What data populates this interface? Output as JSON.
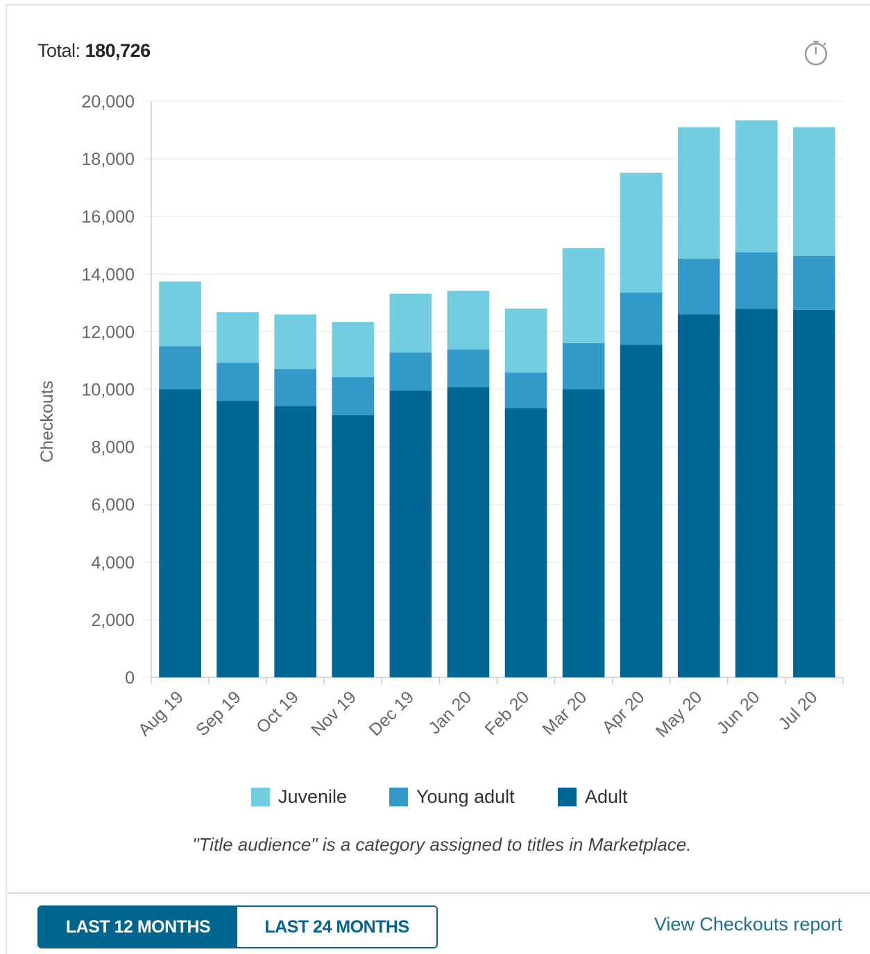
{
  "header": {
    "total_label": "Total:",
    "total_value": "180,726"
  },
  "icons": {
    "timer": "stopwatch-icon"
  },
  "colors": {
    "juvenile": "#72cde0",
    "young_adult": "#3399c9",
    "adult": "#006794",
    "accent": "#00668f",
    "grid": "#eeeeee",
    "axis": "#cccccc"
  },
  "chart_data": {
    "type": "bar",
    "stacked": true,
    "categories": [
      "Aug 19",
      "Sep 19",
      "Oct 19",
      "Nov 19",
      "Dec 19",
      "Jan 20",
      "Feb 20",
      "Mar 20",
      "Apr 20",
      "May 20",
      "Jun 20",
      "Jul 20"
    ],
    "series": [
      {
        "name": "Adult",
        "values": [
          10000,
          9600,
          9420,
          9100,
          9960,
          10080,
          9340,
          10000,
          11540,
          12600,
          12800,
          12760
        ]
      },
      {
        "name": "Young adult",
        "values": [
          1500,
          1320,
          1280,
          1320,
          1320,
          1300,
          1240,
          1600,
          1820,
          1940,
          1960,
          1880
        ]
      },
      {
        "name": "Juvenile",
        "values": [
          2240,
          1760,
          1900,
          1920,
          2040,
          2040,
          2220,
          3300,
          4160,
          4560,
          4580,
          4460
        ]
      }
    ],
    "ylabel": "Checkouts",
    "ylim": [
      0,
      20000
    ],
    "yticks": [
      "0",
      "2,000",
      "4,000",
      "6,000",
      "8,000",
      "10,000",
      "12,000",
      "14,000",
      "16,000",
      "18,000",
      "20,000"
    ],
    "grid": true,
    "legend": "bottom",
    "legend_entries": [
      "Juvenile",
      "Young adult",
      "Adult"
    ]
  },
  "legend": {
    "juvenile": "Juvenile",
    "young_adult": "Young adult",
    "adult": "Adult"
  },
  "note": "\"Title audience\" is a category assigned to titles in Marketplace.",
  "footer": {
    "btn_12": "LAST 12 MONTHS",
    "btn_24": "LAST 24 MONTHS",
    "report_link": "View Checkouts report"
  }
}
